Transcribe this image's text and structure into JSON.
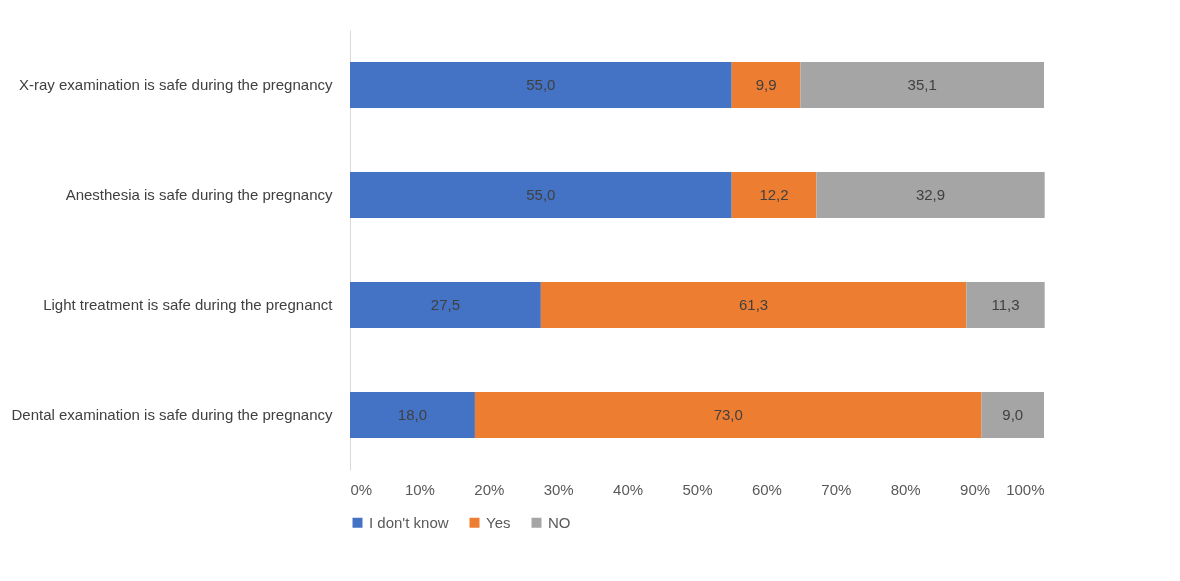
{
  "chart_data": {
    "type": "bar",
    "orientation": "horizontal",
    "stacked": true,
    "categories": [
      "X-ray examination is safe during the pregnancy",
      "Anesthesia is safe during the pregnancy",
      "Light treatment is safe during the pregnanct",
      "Dental examination is safe during the pregnancy"
    ],
    "series": [
      {
        "name": "I don't know",
        "color": "#4472c4",
        "values": [
          55.0,
          55.0,
          27.5,
          18.0
        ],
        "value_labels": [
          "55,0",
          "55,0",
          "27,5",
          "18,0"
        ]
      },
      {
        "name": "Yes",
        "color": "#ed7d31",
        "values": [
          9.9,
          12.2,
          61.3,
          73.0
        ],
        "value_labels": [
          "9,9",
          "12,2",
          "61,3",
          "73,0"
        ]
      },
      {
        "name": "NO",
        "color": "#a5a5a5",
        "values": [
          35.1,
          32.9,
          11.3,
          9.0
        ],
        "value_labels": [
          "35,1",
          "32,9",
          "11,3",
          "9,0"
        ]
      }
    ],
    "xlim": [
      0,
      100
    ],
    "xticks": [
      {
        "value": 0,
        "label": "0%"
      },
      {
        "value": 10,
        "label": "10%"
      },
      {
        "value": 20,
        "label": "20%"
      },
      {
        "value": 30,
        "label": "30%"
      },
      {
        "value": 40,
        "label": "40%"
      },
      {
        "value": 50,
        "label": "50%"
      },
      {
        "value": 60,
        "label": "60%"
      },
      {
        "value": 70,
        "label": "70%"
      },
      {
        "value": 80,
        "label": "80%"
      },
      {
        "value": 90,
        "label": "90%"
      },
      {
        "value": 100,
        "label": "100%"
      }
    ],
    "grid": false,
    "legend": "bottom"
  }
}
